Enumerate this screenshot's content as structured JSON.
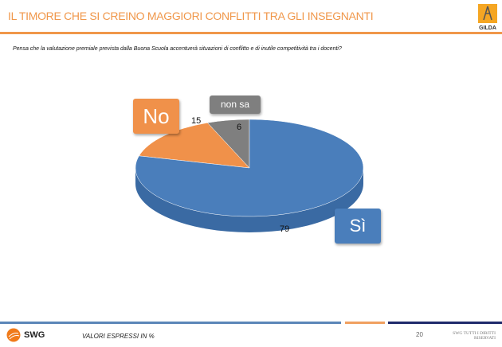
{
  "header": {
    "title": "IL TIMORE CHE SI CREINO MAGGIORI CONFLITTI TRA GLI INSEGNANTI",
    "logo_text": "GILDA"
  },
  "question": "Pensa che la valutazione premiale prevista dalla Buona Scuola accentuerà situazioni di conflitto e di inutile competitività tra i docenti?",
  "chart_data": {
    "type": "pie",
    "title": "",
    "categories": [
      "non sa",
      "No",
      "Sì"
    ],
    "values": [
      6,
      15,
      79
    ],
    "colors": [
      "#7f7f7f",
      "#f0914a",
      "#4a7ebb"
    ],
    "unit": "%"
  },
  "footer": {
    "brand": "SWG",
    "note": "VALORI ESPRESSI IN %",
    "page": "20",
    "rights_line1": "SWG TUTTI I DIRITTI",
    "rights_line2": "RISERVATI"
  }
}
